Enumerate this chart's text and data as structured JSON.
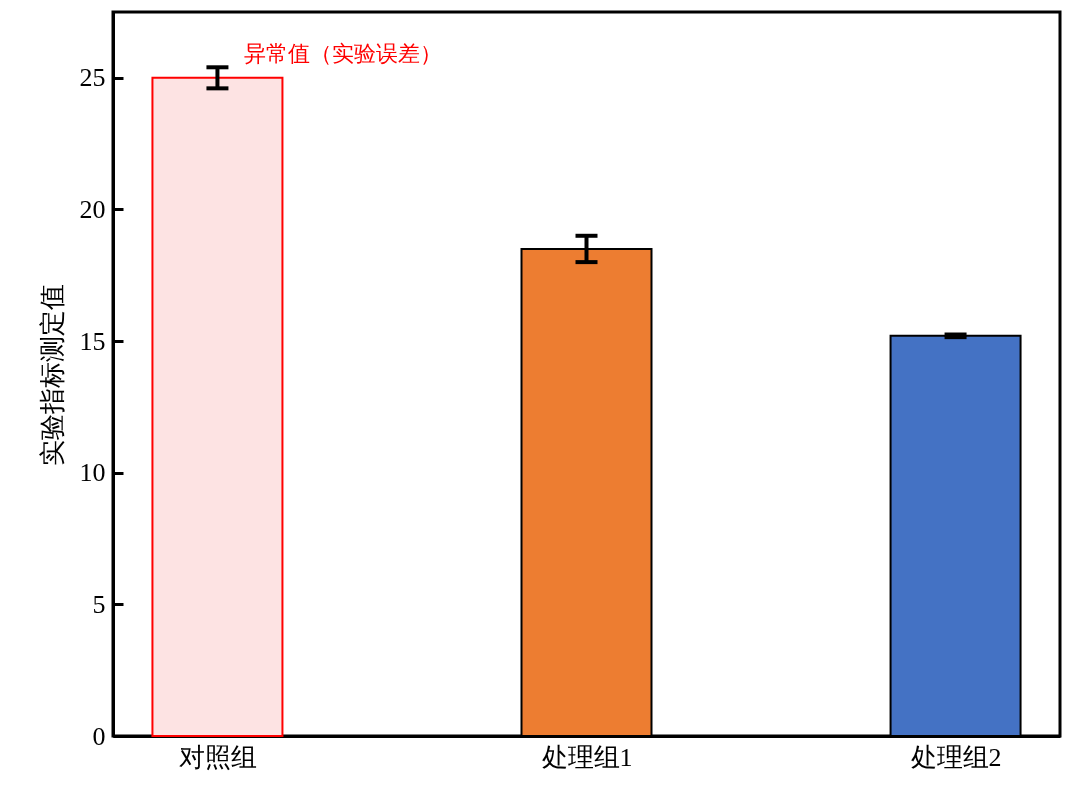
{
  "chart_data": {
    "type": "bar",
    "ylabel": "实验指标测定值",
    "categories": [
      "对照组",
      "处理组1",
      "处理组2"
    ],
    "values": [
      25,
      18.5,
      15.2
    ],
    "errors": [
      0.4,
      0.5,
      0.05
    ],
    "colors": [
      "#fde3e3",
      "#ed7d31",
      "#4472c4"
    ],
    "ylim": [
      0,
      27.5
    ],
    "yticks": [
      0,
      5,
      10,
      15,
      20,
      25
    ],
    "grid": false,
    "annotations": [
      {
        "text": "异常值（实验误差）",
        "x": "对照组",
        "y": 25
      }
    ]
  }
}
